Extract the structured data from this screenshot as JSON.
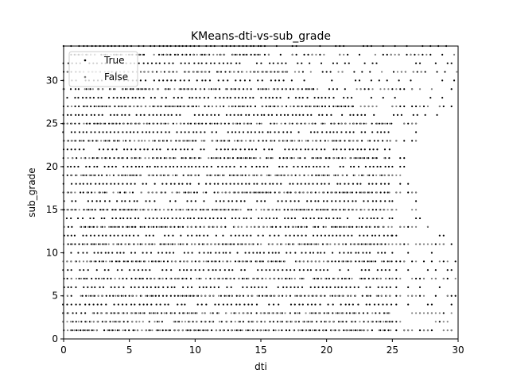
{
  "chart_data": {
    "type": "scatter",
    "title": "KMeans-dti-vs-sub_grade",
    "xlabel": "dti",
    "ylabel": "sub_grade",
    "xlim": [
      0,
      30
    ],
    "ylim": [
      0,
      34
    ],
    "xticks": [
      0,
      5,
      10,
      15,
      20,
      25,
      30
    ],
    "yticks": [
      0,
      5,
      10,
      15,
      20,
      25,
      30
    ],
    "grid": false,
    "legend_position": "upper-left",
    "series": [
      {
        "name": "True",
        "color": "#000000",
        "dense_rows": [
          {
            "y": 1,
            "x_from": 0,
            "x_to": 25,
            "sparse_to": 30
          },
          {
            "y": 2,
            "x_from": 0,
            "x_to": 25,
            "sparse_to": 30
          },
          {
            "y": 3,
            "x_from": 0,
            "x_to": 25,
            "sparse_to": 30
          },
          {
            "y": 4,
            "x_from": 0,
            "x_to": 25,
            "sparse_to": 30
          },
          {
            "y": 5,
            "x_from": 0,
            "x_to": 25,
            "sparse_to": 30
          },
          {
            "y": 6,
            "x_from": 0,
            "x_to": 25,
            "sparse_to": 30
          },
          {
            "y": 7,
            "x_from": 0,
            "x_to": 25,
            "sparse_to": 30
          },
          {
            "y": 8,
            "x_from": 0,
            "x_to": 25,
            "sparse_to": 30
          },
          {
            "y": 9,
            "x_from": 0,
            "x_to": 25,
            "sparse_to": 30
          },
          {
            "y": 10,
            "x_from": 0,
            "x_to": 25,
            "sparse_to": 30
          },
          {
            "y": 11,
            "x_from": 0,
            "x_to": 25,
            "sparse_to": 30
          },
          {
            "y": 12,
            "x_from": 0,
            "x_to": 25,
            "sparse_to": 29
          },
          {
            "y": 13,
            "x_from": 0,
            "x_to": 25,
            "sparse_to": 28
          },
          {
            "y": 14,
            "x_from": 0,
            "x_to": 25,
            "sparse_to": 27.5
          },
          {
            "y": 15,
            "x_from": 0,
            "x_to": 25,
            "sparse_to": 27
          },
          {
            "y": 16,
            "x_from": 0,
            "x_to": 25,
            "sparse_to": 27
          },
          {
            "y": 17,
            "x_from": 0,
            "x_to": 25,
            "sparse_to": 27
          },
          {
            "y": 18,
            "x_from": 0,
            "x_to": 25,
            "sparse_to": 26.5
          },
          {
            "y": 19,
            "x_from": 0,
            "x_to": 25,
            "sparse_to": 26
          },
          {
            "y": 20,
            "x_from": 0,
            "x_to": 25,
            "sparse_to": 26
          },
          {
            "y": 21,
            "x_from": 0,
            "x_to": 25,
            "sparse_to": 26
          },
          {
            "y": 22,
            "x_from": 0,
            "x_to": 25,
            "sparse_to": 26
          },
          {
            "y": 23,
            "x_from": 0,
            "x_to": 25,
            "sparse_to": 27
          },
          {
            "y": 24,
            "x_from": 0,
            "x_to": 25,
            "sparse_to": 27
          },
          {
            "y": 25,
            "x_from": 0,
            "x_to": 25,
            "sparse_to": 27
          },
          {
            "y": 26,
            "x_from": 0,
            "x_to": 23,
            "sparse_to": 29
          },
          {
            "y": 27,
            "x_from": 0,
            "x_to": 22,
            "sparse_to": 30
          },
          {
            "y": 28,
            "x_from": 0,
            "x_to": 21,
            "sparse_to": 30
          },
          {
            "y": 29,
            "x_from": 0,
            "x_to": 19,
            "sparse_to": 30
          },
          {
            "y": 30,
            "x_from": 0,
            "x_to": 18,
            "sparse_to": 30
          },
          {
            "y": 31,
            "x_from": 0,
            "x_to": 17,
            "sparse_to": 30
          },
          {
            "y": 32,
            "x_from": 0,
            "x_to": 16,
            "sparse_to": 30
          },
          {
            "y": 33,
            "x_from": 0,
            "x_to": 15,
            "sparse_to": 30
          },
          {
            "y": 34,
            "x_from": 0,
            "x_to": 15,
            "sparse_to": 30
          }
        ]
      },
      {
        "name": "False",
        "color": "#808080",
        "dense_rows": [
          {
            "y": 1,
            "x_from": 0,
            "x_to": 25,
            "sparse_to": 30
          },
          {
            "y": 2,
            "x_from": 0,
            "x_to": 25,
            "sparse_to": 30
          },
          {
            "y": 3,
            "x_from": 0,
            "x_to": 25,
            "sparse_to": 30
          },
          {
            "y": 5,
            "x_from": 0,
            "x_to": 25,
            "sparse_to": 30
          },
          {
            "y": 7,
            "x_from": 0,
            "x_to": 25,
            "sparse_to": 30
          },
          {
            "y": 9,
            "x_from": 0,
            "x_to": 25,
            "sparse_to": 30
          },
          {
            "y": 11,
            "x_from": 0,
            "x_to": 25,
            "sparse_to": 29
          },
          {
            "y": 13,
            "x_from": 0,
            "x_to": 25,
            "sparse_to": 28
          },
          {
            "y": 15,
            "x_from": 0,
            "x_to": 25,
            "sparse_to": 27
          },
          {
            "y": 17,
            "x_from": 0,
            "x_to": 25,
            "sparse_to": 27
          },
          {
            "y": 19,
            "x_from": 0,
            "x_to": 25,
            "sparse_to": 26
          },
          {
            "y": 21,
            "x_from": 0,
            "x_to": 25,
            "sparse_to": 26
          },
          {
            "y": 23,
            "x_from": 0,
            "x_to": 25,
            "sparse_to": 27
          },
          {
            "y": 25,
            "x_from": 0,
            "x_to": 25,
            "sparse_to": 27
          },
          {
            "y": 27,
            "x_from": 0,
            "x_to": 22,
            "sparse_to": 30
          },
          {
            "y": 29,
            "x_from": 0,
            "x_to": 19,
            "sparse_to": 30
          },
          {
            "y": 31,
            "x_from": 0,
            "x_to": 17,
            "sparse_to": 30
          },
          {
            "y": 33,
            "x_from": 0,
            "x_to": 15,
            "sparse_to": 30
          }
        ]
      }
    ]
  }
}
